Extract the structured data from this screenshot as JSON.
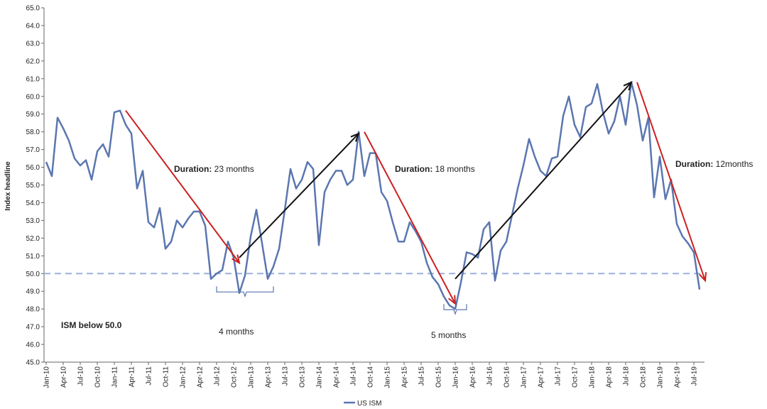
{
  "chart_data": {
    "type": "line",
    "ylabel": "Index headline",
    "ylim": [
      45.0,
      65.0
    ],
    "y_ticks": [
      "45.0",
      "46.0",
      "47.0",
      "48.0",
      "49.0",
      "50.0",
      "51.0",
      "52.0",
      "53.0",
      "54.0",
      "55.0",
      "56.0",
      "57.0",
      "58.0",
      "59.0",
      "60.0",
      "61.0",
      "62.0",
      "63.0",
      "64.0",
      "65.0"
    ],
    "x_tick_labels": [
      "Jan-10",
      "Apr-10",
      "Jul-10",
      "Oct-10",
      "Jan-11",
      "Apr-11",
      "Jul-11",
      "Oct-11",
      "Jan-12",
      "Apr-12",
      "Jul-12",
      "Oct-12",
      "Jan-13",
      "Apr-13",
      "Jul-13",
      "Oct-13",
      "Jan-14",
      "Apr-14",
      "Jul-14",
      "Oct-14",
      "Jan-15",
      "Apr-15",
      "Jul-15",
      "Oct-15",
      "Jan-16",
      "Apr-16",
      "Jul-16",
      "Oct-16",
      "Jan-17",
      "Apr-17",
      "Jul-17",
      "Oct-17",
      "Jan-18",
      "Apr-18",
      "Jul-18",
      "Oct-18",
      "Jan-19",
      "Apr-19",
      "Jul-19"
    ],
    "x_start": "2010-01",
    "grid": false,
    "legend": "bottom",
    "reference_line": {
      "y": 50.0,
      "style": "dashed",
      "color": "#9bb0dc"
    },
    "series": [
      {
        "name": "US ISM",
        "color": "#5b76b0",
        "values": [
          56.3,
          55.5,
          58.8,
          58.2,
          57.5,
          56.5,
          56.1,
          56.4,
          55.3,
          56.9,
          57.3,
          56.6,
          59.1,
          59.2,
          58.4,
          57.9,
          54.8,
          55.8,
          52.9,
          52.6,
          53.7,
          51.4,
          51.8,
          53.0,
          52.6,
          53.1,
          53.5,
          53.5,
          52.7,
          49.7,
          50.0,
          50.2,
          51.8,
          50.9,
          48.9,
          49.9,
          52.1,
          53.6,
          51.7,
          49.7,
          50.4,
          51.4,
          53.6,
          55.9,
          54.8,
          55.3,
          56.3,
          55.9,
          51.6,
          54.6,
          55.3,
          55.8,
          55.8,
          55.0,
          55.3,
          58.0,
          55.5,
          56.8,
          56.8,
          54.6,
          54.1,
          52.9,
          51.8,
          51.8,
          52.9,
          52.4,
          51.8,
          50.6,
          49.8,
          49.4,
          48.7,
          48.2,
          48.0,
          49.5,
          51.2,
          51.1,
          50.9,
          52.5,
          52.9,
          49.6,
          51.3,
          51.8,
          53.3,
          54.8,
          56.1,
          57.6,
          56.6,
          55.8,
          55.5,
          56.5,
          56.6,
          58.9,
          60.0,
          58.4,
          57.7,
          59.4,
          59.6,
          60.7,
          59.1,
          57.9,
          58.6,
          60.0,
          58.4,
          60.8,
          59.5,
          57.5,
          58.8,
          54.3,
          56.6,
          54.2,
          55.3,
          52.8,
          52.1,
          51.7,
          51.2,
          49.1
        ]
      }
    ],
    "annotations": {
      "duration_1": {
        "bold": "Duration:",
        "text": " 23 months"
      },
      "duration_2": {
        "bold": "Duration:",
        "text": " 18 months"
      },
      "duration_3": {
        "bold": "Duration:",
        "text": " 12months"
      },
      "below_1": "4 months",
      "below_2": "5 months",
      "note": "ISM below 50.0"
    },
    "arrows": [
      {
        "from": [
          "2011-03",
          59.2
        ],
        "to": [
          "2012-11",
          50.6
        ],
        "color": "#cc2020"
      },
      {
        "from": [
          "2012-11",
          50.9
        ],
        "to": [
          "2014-08",
          57.9
        ],
        "color": "#111111"
      },
      {
        "from": [
          "2014-09",
          58.0
        ],
        "to": [
          "2016-01",
          48.3
        ],
        "color": "#cc2020"
      },
      {
        "from": [
          "2016-01",
          49.7
        ],
        "to": [
          "2018-08",
          60.8
        ],
        "color": "#111111"
      },
      {
        "from": [
          "2018-09",
          60.8
        ],
        "to": [
          "2019-09",
          49.6
        ],
        "color": "#cc2020"
      }
    ],
    "brackets": [
      {
        "from": "2012-07",
        "to": "2013-05",
        "y": 49.0
      },
      {
        "from": "2015-11",
        "to": "2016-03",
        "y": 48.0
      }
    ]
  }
}
